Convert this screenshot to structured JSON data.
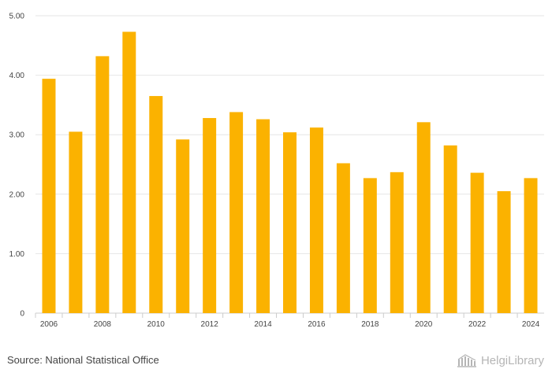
{
  "chart_data": {
    "type": "bar",
    "categories": [
      "2006",
      "2007",
      "2008",
      "2009",
      "2010",
      "2011",
      "2012",
      "2013",
      "2014",
      "2015",
      "2016",
      "2017",
      "2018",
      "2019",
      "2020",
      "2021",
      "2022",
      "2023",
      "2024"
    ],
    "values": [
      3.94,
      3.05,
      4.32,
      4.73,
      3.65,
      2.92,
      3.28,
      3.38,
      3.26,
      3.04,
      3.12,
      2.52,
      2.27,
      2.37,
      3.21,
      2.82,
      2.36,
      2.05,
      2.27
    ],
    "xtick_labels": [
      "2006",
      "2008",
      "2010",
      "2012",
      "2014",
      "2016",
      "2018",
      "2020",
      "2022",
      "2024"
    ],
    "ytick_labels": [
      "0",
      "1.00",
      "2.00",
      "3.00",
      "4.00",
      "5.00"
    ],
    "ytick_values": [
      0,
      1,
      2,
      3,
      4,
      5
    ],
    "ylim": [
      0,
      5
    ],
    "title": "",
    "xlabel": "",
    "ylabel": "",
    "bar_color": "#FBB200",
    "grid": true
  },
  "footer": {
    "source": "Source: National Statistical Office",
    "brand": "HelgiLibrary"
  },
  "colors": {
    "bar": "#FBB200",
    "grid": "#e6e6e6",
    "brand": "#b5b5b5"
  }
}
